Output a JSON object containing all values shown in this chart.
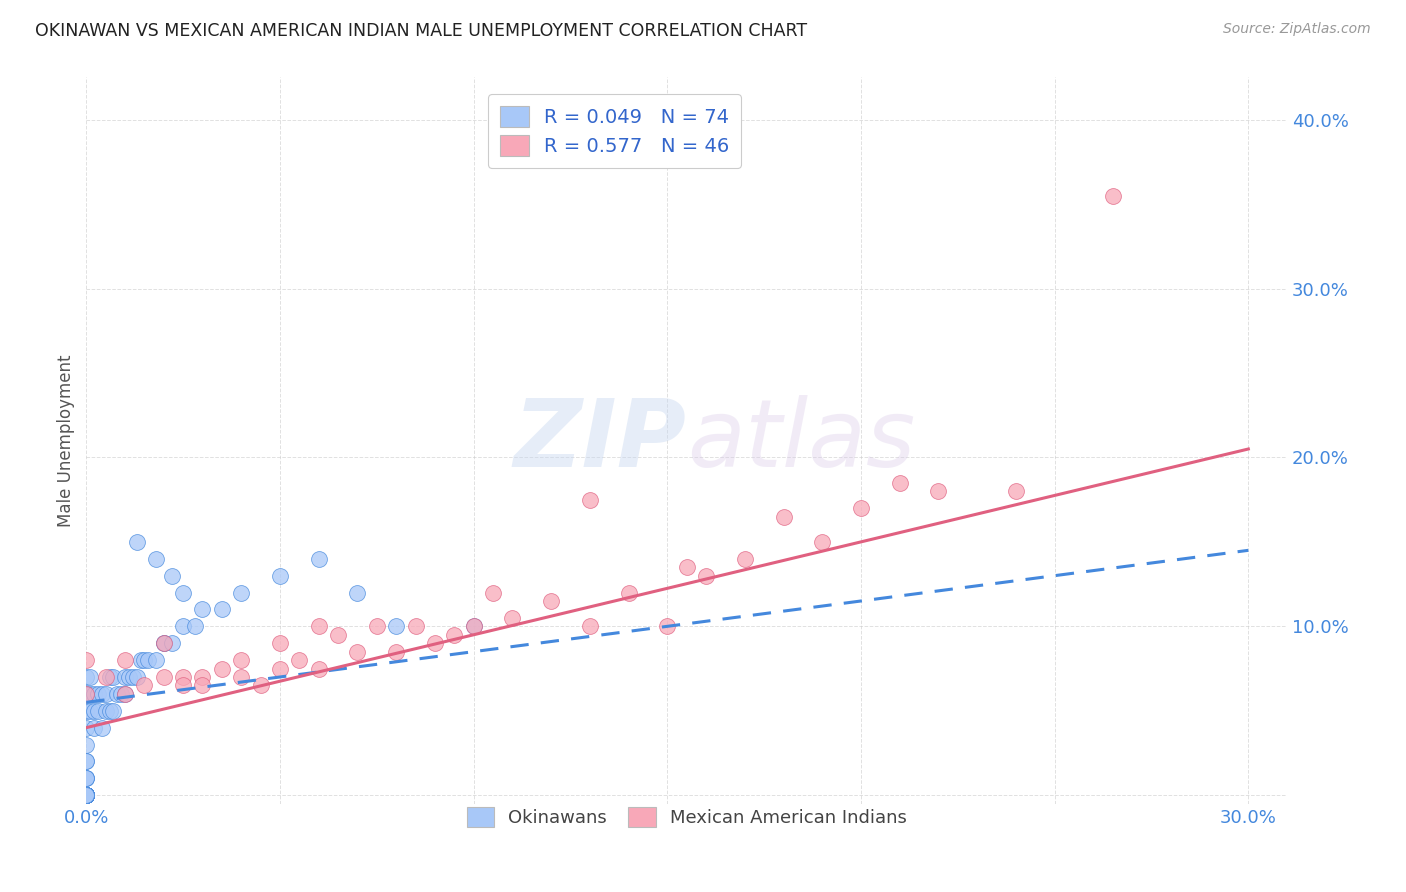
{
  "title": "OKINAWAN VS MEXICAN AMERICAN INDIAN MALE UNEMPLOYMENT CORRELATION CHART",
  "source": "Source: ZipAtlas.com",
  "ylabel": "Male Unemployment",
  "xlim": [
    0.0,
    0.31
  ],
  "ylim": [
    -0.005,
    0.425
  ],
  "xticks": [
    0.0,
    0.05,
    0.1,
    0.15,
    0.2,
    0.25,
    0.3
  ],
  "yticks": [
    0.0,
    0.1,
    0.2,
    0.3,
    0.4
  ],
  "xtick_labels": [
    "0.0%",
    "",
    "",
    "",
    "",
    "",
    "30.0%"
  ],
  "ytick_labels": [
    "",
    "10.0%",
    "20.0%",
    "30.0%",
    "40.0%"
  ],
  "legend_label1": "Okinawans",
  "legend_label2": "Mexican American Indians",
  "R1": 0.049,
  "N1": 74,
  "R2": 0.577,
  "N2": 46,
  "color1": "#a8c8f8",
  "color2": "#f8a8b8",
  "line_color1": "#4488dd",
  "line_color2": "#e06080",
  "background_color": "#ffffff",
  "okinawan_x": [
    0.0,
    0.0,
    0.0,
    0.0,
    0.0,
    0.0,
    0.0,
    0.0,
    0.0,
    0.0,
    0.0,
    0.0,
    0.0,
    0.0,
    0.0,
    0.0,
    0.0,
    0.0,
    0.0,
    0.0,
    0.0,
    0.0,
    0.0,
    0.0,
    0.0,
    0.0,
    0.0,
    0.0,
    0.0,
    0.0,
    0.001,
    0.001,
    0.001,
    0.002,
    0.002,
    0.002,
    0.003,
    0.003,
    0.004,
    0.004,
    0.005,
    0.005,
    0.006,
    0.006,
    0.007,
    0.007,
    0.008,
    0.009,
    0.01,
    0.01,
    0.011,
    0.012,
    0.013,
    0.014,
    0.015,
    0.016,
    0.018,
    0.02,
    0.02,
    0.022,
    0.025,
    0.028,
    0.03,
    0.035,
    0.04,
    0.05,
    0.06,
    0.07,
    0.08,
    0.1,
    0.013,
    0.018,
    0.022,
    0.025
  ],
  "okinawan_y": [
    0.0,
    0.0,
    0.0,
    0.0,
    0.0,
    0.0,
    0.0,
    0.0,
    0.0,
    0.0,
    0.01,
    0.01,
    0.01,
    0.02,
    0.02,
    0.03,
    0.04,
    0.05,
    0.06,
    0.07,
    0.0,
    0.0,
    0.0,
    0.0,
    0.0,
    0.0,
    0.0,
    0.0,
    0.0,
    0.0,
    0.05,
    0.06,
    0.07,
    0.04,
    0.05,
    0.06,
    0.05,
    0.06,
    0.04,
    0.06,
    0.05,
    0.06,
    0.05,
    0.07,
    0.05,
    0.07,
    0.06,
    0.06,
    0.06,
    0.07,
    0.07,
    0.07,
    0.07,
    0.08,
    0.08,
    0.08,
    0.08,
    0.09,
    0.09,
    0.09,
    0.1,
    0.1,
    0.11,
    0.11,
    0.12,
    0.13,
    0.14,
    0.12,
    0.1,
    0.1,
    0.15,
    0.14,
    0.13,
    0.12
  ],
  "mexican_x": [
    0.0,
    0.0,
    0.005,
    0.01,
    0.01,
    0.015,
    0.02,
    0.02,
    0.025,
    0.025,
    0.03,
    0.03,
    0.035,
    0.04,
    0.04,
    0.045,
    0.05,
    0.05,
    0.055,
    0.06,
    0.06,
    0.065,
    0.07,
    0.075,
    0.08,
    0.085,
    0.09,
    0.095,
    0.1,
    0.105,
    0.11,
    0.12,
    0.13,
    0.13,
    0.14,
    0.15,
    0.155,
    0.16,
    0.17,
    0.18,
    0.19,
    0.2,
    0.21,
    0.22,
    0.24,
    0.265
  ],
  "mexican_y": [
    0.06,
    0.08,
    0.07,
    0.06,
    0.08,
    0.065,
    0.07,
    0.09,
    0.07,
    0.065,
    0.07,
    0.065,
    0.075,
    0.08,
    0.07,
    0.065,
    0.075,
    0.09,
    0.08,
    0.1,
    0.075,
    0.095,
    0.085,
    0.1,
    0.085,
    0.1,
    0.09,
    0.095,
    0.1,
    0.12,
    0.105,
    0.115,
    0.1,
    0.175,
    0.12,
    0.1,
    0.135,
    0.13,
    0.14,
    0.165,
    0.15,
    0.17,
    0.185,
    0.18,
    0.18,
    0.355
  ],
  "line1_x": [
    0.0,
    0.3
  ],
  "line1_y": [
    0.055,
    0.145
  ],
  "line2_x": [
    0.0,
    0.3
  ],
  "line2_y": [
    0.04,
    0.205
  ]
}
